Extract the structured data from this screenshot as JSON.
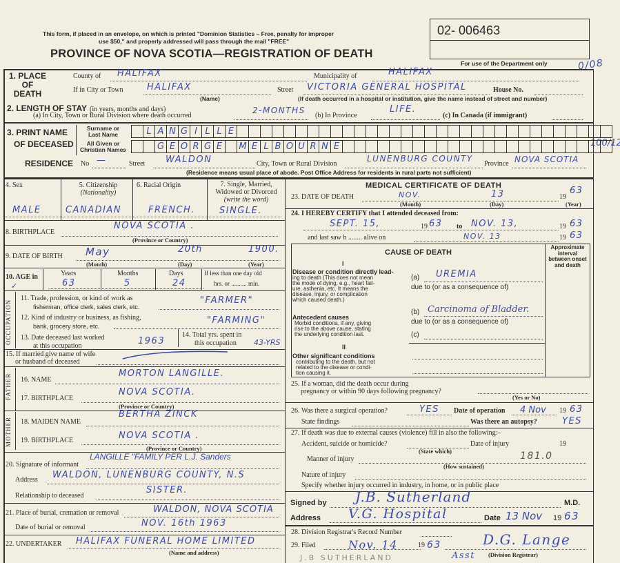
{
  "header": {
    "notice_line1": "This form, if placed in an envelope, on which is printed \"Dominion Statistics – Free, penalty for improper",
    "notice_line2": "use $50,\" and properly addressed will pass through the mail \"FREE\"",
    "title": "PROVINCE OF NOVA SCOTIA—REGISTRATION OF DEATH",
    "registration_number": "02- 006463",
    "dept_only": "For use of the Department only",
    "margin_mark_1": "0/08",
    "margin_mark_2": "100/12"
  },
  "place_of_death": {
    "label": "1. PLACE OF DEATH",
    "county_label": "County of",
    "county": "HALIFAX",
    "municipality_label": "Municipality of",
    "municipality": "HALIFAX",
    "city_label": "If in City or Town",
    "city": "HALIFAX",
    "name_note": "(Name)",
    "street_label": "Street",
    "street": "VICTORIA GENERAL HOSPITAL",
    "house_label": "House No.",
    "institution_note": "(If death occurred in a hospital or institution, give the name instead of street and number)"
  },
  "length_of_stay": {
    "label": "2. LENGTH OF STAY",
    "label_note": "(in years, months and days)",
    "a_label": "(a) In City, Town or Rural Division where death occurred",
    "a_value": "2-MONTHS",
    "b_label": "(b) In Province",
    "b_value": "LIFE.",
    "c_label": "(c) In Canada (if immigrant)"
  },
  "name": {
    "label_1": "3. PRINT NAME",
    "label_2": "OF DECEASED",
    "surname_label_1": "Surname or",
    "surname_label_2": "Last Name",
    "given_label_1": "All Given or",
    "given_label_2": "Christian Names",
    "surname": "LANGILLE",
    "given": "GEORGE MELBOURNE"
  },
  "residence": {
    "label": "RESIDENCE",
    "no_label": "No",
    "no_value": "—",
    "street_label": "Street",
    "street": "WALDON",
    "city_label": "City, Town or Rural Division",
    "city": "LUNENBURG COUNTY",
    "province_label": "Province",
    "province": "NOVA SCOTIA",
    "note": "(Residence means usual place of abode. Post Office Address for residents in rural parts not sufficient)"
  },
  "personal": {
    "sex_label": "4. Sex",
    "sex": "MALE",
    "citizenship_label": "5. Citizenship",
    "citizenship_note": "(Nationality)",
    "citizenship": "CANADIAN",
    "racial_label": "6. Racial Origin",
    "racial": "FRENCH.",
    "marital_label_1": "7. Single, Married,",
    "marital_label_2": "Widowed or Divorced",
    "marital_label_3": "(write the word)",
    "marital": "SINGLE.",
    "birthplace_label": "8. BIRTHPLACE",
    "birthplace": "NOVA SCOTIA .",
    "province_country": "(Province or Country)",
    "dob_label": "9. DATE OF BIRTH",
    "dob_month": "May",
    "dob_day": "20th",
    "dob_year": "1900.",
    "month_note": "(Month)",
    "day_note": "(Day)",
    "year_note": "(Year)",
    "age_label": "10. AGE in",
    "age_check": "✓",
    "years_label": "Years",
    "years": "63",
    "months_label": "Months",
    "months": "5",
    "days_label": "Days",
    "days": "24",
    "lt_day_label": "If less than one day old",
    "hrs_min": "hrs. or .......... min."
  },
  "occupation": {
    "side_label": "OCCUPATION",
    "q11_1": "11. Trade, profession, or kind of work as",
    "q11_2": "fisherman, office clerk, sales clerk, etc.",
    "q11": "\"FARMER\"",
    "q12_1": "12. Kind of industry or business, as fishing,",
    "q12_2": "bank, grocery store, etc.",
    "q12": "\"FARMING\"",
    "q13_1": "13. Date deceased last worked",
    "q13_2": "at this occupation",
    "q13": "1963",
    "q14_1": "14. Total yrs. spent in",
    "q14_2": "this occupation",
    "q14": "43-YRS"
  },
  "family": {
    "q15_1": "15. If married give name of wife",
    "q15_2": "or husband of deceased",
    "father_label": "FATHER",
    "mother_label": "MOTHER",
    "q16_label": "16. NAME",
    "q16": "MORTON LANGILLE.",
    "q17_label": "17. BIRTHPLACE",
    "q17": "NOVA SCOTIA.",
    "q18_label": "18. MAIDEN NAME",
    "q18": "BERTHA ZINCK",
    "q19_label": "19. BIRTHPLACE",
    "q19": "NOVA SCOTIA .",
    "province_country": "(Province or Country)"
  },
  "informant": {
    "q20_label": "20. Signature of informant",
    "q20": "LANGILLE \"FAMILY PER L.J. Sanders",
    "address_label": "Address",
    "address": "WALDON, LUNENBURG COUNTY, N.S",
    "relationship_label": "Relationship to deceased",
    "relationship": "SISTER.",
    "q21_label": "21. Place of burial, cremation or removal",
    "q21": "WALDON, NOVA SCOTIA",
    "burial_date_label": "Date of burial or removal",
    "burial_date": "NOV. 16th 1963",
    "q22_label": "22. UNDERTAKER",
    "q22": "HALIFAX FUNERAL HOME LIMITED",
    "q22_note": "(Name and address)"
  },
  "medical": {
    "title": "MEDICAL CERTIFICATE OF DEATH",
    "q23_label": "23. DATE OF DEATH",
    "q23_month": "NOV.",
    "q23_day": "13",
    "q23_year": "63",
    "nineteen": "19",
    "month_note": "(Month)",
    "day_note": "(Day)",
    "year_note": "(Year)",
    "q24_label": "24. I HEREBY CERTIFY that I attended deceased from:",
    "from": "SEPT. 15,",
    "from_year": "63",
    "to_label": "to",
    "to": "NOV. 13,",
    "to_year": "63",
    "last_saw_label": "and last saw h ........ alive on",
    "last_saw": "NOV. 13",
    "last_saw_year": "63"
  },
  "cause": {
    "title": "CAUSE OF DEATH",
    "interval_label": "Approximate interval between onset and death",
    "part_i": "I",
    "part_ii": "II",
    "direct_title": "Disease or condition directly lead-",
    "direct_1": "ing to death (This does not mean",
    "direct_2": "the mode of dying, e.g., heart fail-",
    "direct_3": "ure, asthenia, etc. It means the",
    "direct_4": "disease, injury, or complication",
    "direct_5": "which caused death.)",
    "a_label": "(a)",
    "a": "UREMIA",
    "due_to": "due to (or as a consequence of)",
    "antecedent_title": "Antecedent causes",
    "antecedent_1": "Morbid conditions, if any, giving",
    "antecedent_2": "rise to the above cause, stating",
    "antecedent_3": "the underlying condition last.",
    "b_label": "(b)",
    "b": "Carcinoma of Bladder.",
    "c_label": "(c)",
    "other_title": "Other significant conditions",
    "other_1": "contributing to the death, but not",
    "other_2": "related to the disease or condi-",
    "other_3": "tion causing it."
  },
  "questions": {
    "q25_1": "25. If a woman, did the death occur during",
    "q25_2": "pregnancy or within 90 days following pregnancy?",
    "yes_no": "(Yes or No)",
    "q26_label": "26. Was there a surgical operation?",
    "q26": "YES",
    "op_date_label": "Date of operation",
    "op_date": "4 Nov",
    "op_year": "63",
    "findings_label": "State findings",
    "autopsy_label": "Was there an autopsy?",
    "autopsy": "YES",
    "q27": "27. If death was due to external causes (violence) fill in also the following:–",
    "accident_label": "Accident, suicide or homicide?",
    "state_which": "(State which)",
    "injury_date_label": "Date of injury",
    "manner_label": "Manner of injury",
    "code": "181.0",
    "how_sustained": "(How sustained)",
    "nature_label": "Nature of injury",
    "specify_label": "Specify whether injury occurred in industry, in home, or in public place"
  },
  "signature": {
    "signed_label": "Signed by",
    "signed": "J.B. Sutherland",
    "md": "M.D.",
    "address_label": "Address",
    "address": "V.G. Hospital",
    "date_label": "Date",
    "date": "13 Nov",
    "year": "63",
    "q28_label": "28. Division Registrar's Record Number",
    "q29_label": "29. Filed",
    "filed": "Nov. 14",
    "filed_year": "63",
    "registrar_signature": "D.G. Lange",
    "registrar_note": "(Division Registrar)",
    "registrar_mark": "Asst",
    "pencil_name": "J.B SUTHERLAND"
  }
}
